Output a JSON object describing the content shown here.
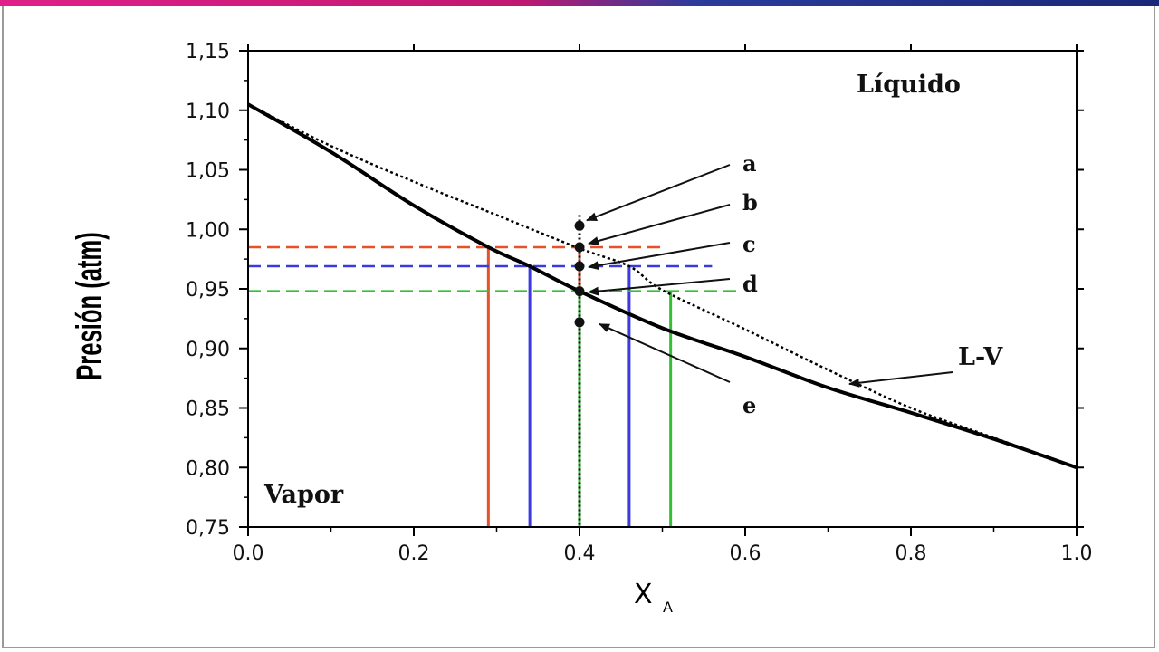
{
  "chart_data": {
    "type": "line",
    "xlabel": "X",
    "xlabel_sub": "A",
    "ylabel": "Presión (atm)",
    "xlim": [
      0.0,
      1.0
    ],
    "ylim": [
      0.75,
      1.15
    ],
    "x_ticks": [
      "0.0",
      "0.2",
      "0.4",
      "0.6",
      "0.8",
      "1.0"
    ],
    "y_ticks": [
      "0,75",
      "0,80",
      "0,85",
      "0,90",
      "0,95",
      "1,00",
      "1,05",
      "1,10",
      "1,15"
    ],
    "grid": false,
    "series": [
      {
        "name": "",
        "style": "solid",
        "x": [
          0.0,
          0.1,
          0.2,
          0.29,
          0.34,
          0.4,
          0.5,
          0.6,
          0.7,
          0.8,
          0.9,
          1.0
        ],
        "y": [
          1.105,
          1.065,
          1.02,
          0.985,
          0.969,
          0.948,
          0.917,
          0.893,
          0.867,
          0.846,
          0.824,
          0.8
        ]
      },
      {
        "name": "",
        "style": "dotted",
        "x": [
          0.0,
          0.1,
          0.2,
          0.3,
          0.4,
          0.46,
          0.5,
          0.6,
          0.7,
          0.8,
          0.9,
          1.0
        ],
        "y": [
          1.105,
          1.07,
          1.04,
          1.012,
          0.984,
          0.969,
          0.949,
          0.916,
          0.882,
          0.85,
          0.825,
          0.8
        ]
      }
    ],
    "tie_lines": [
      {
        "color": "#e8502a",
        "p": 0.985,
        "x_left": 0.29,
        "x_right": 0.4
      },
      {
        "color": "#3a3ae0",
        "p": 0.969,
        "x_left": 0.34,
        "x_right": 0.46
      },
      {
        "color": "#33c033",
        "p": 0.948,
        "x_left": 0.4,
        "x_right": 0.51
      }
    ],
    "isopleth_x": 0.4,
    "points": [
      {
        "label": "a",
        "x": 0.4,
        "y": 1.003
      },
      {
        "label": "b",
        "x": 0.4,
        "y": 0.985
      },
      {
        "label": "c",
        "x": 0.4,
        "y": 0.969
      },
      {
        "label": "d",
        "x": 0.4,
        "y": 0.948
      },
      {
        "label": "e",
        "x": 0.4,
        "y": 0.922
      }
    ],
    "annotations": [
      {
        "text": "Líquido"
      },
      {
        "text": "Vapor"
      },
      {
        "text": "L-V"
      }
    ]
  }
}
